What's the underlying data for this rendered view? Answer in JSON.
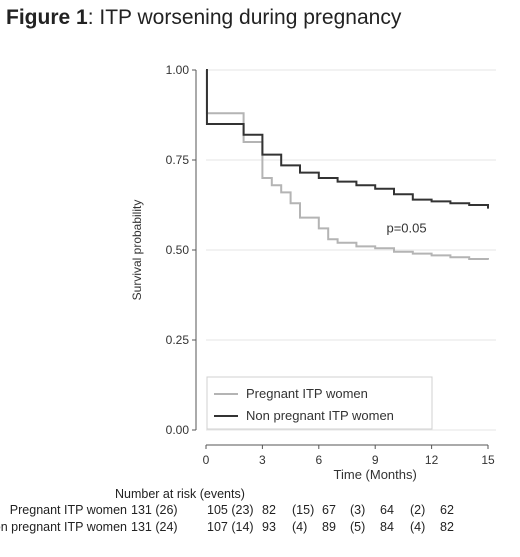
{
  "figure_label": "Figure 1",
  "figure_title": ": ITP worsening during pregnancy",
  "chart_data": {
    "type": "line",
    "subtype": "kaplan-meier-step",
    "xlabel": "Time (Months)",
    "ylabel": "Survival probability",
    "xlim": [
      0,
      15
    ],
    "ylim": [
      0,
      1
    ],
    "xticks": [
      "0",
      "3",
      "6",
      "9",
      "12",
      "15"
    ],
    "xtick_values": [
      0,
      3,
      6,
      9,
      12,
      15
    ],
    "yticks": [
      "0.00",
      "0.25",
      "0.50",
      "0.75",
      "1.00"
    ],
    "ytick_values": [
      0,
      0.25,
      0.5,
      0.75,
      1.0
    ],
    "grid": true,
    "legend_position": "bottom-left",
    "annotation": "p=0.05",
    "annotation_pos": [
      9.6,
      0.56
    ],
    "series": [
      {
        "name": "Pregnant ITP women",
        "color": "#b4b4b4",
        "x": [
          0,
          0.05,
          2,
          3,
          3.5,
          4,
          4.5,
          5,
          6,
          6.5,
          7,
          8,
          9,
          10,
          11,
          12,
          13,
          14,
          15
        ],
        "y": [
          1.0,
          0.88,
          0.8,
          0.7,
          0.68,
          0.66,
          0.63,
          0.59,
          0.56,
          0.53,
          0.52,
          0.51,
          0.505,
          0.495,
          0.49,
          0.485,
          0.48,
          0.475,
          0.473
        ]
      },
      {
        "name": "Non pregnant ITP women",
        "color": "#333333",
        "x": [
          0,
          0.05,
          2,
          3,
          4,
          5,
          6,
          7,
          8,
          9,
          10,
          11,
          12,
          13,
          14,
          15
        ],
        "y": [
          1.0,
          0.85,
          0.82,
          0.765,
          0.735,
          0.715,
          0.7,
          0.69,
          0.68,
          0.67,
          0.655,
          0.64,
          0.635,
          0.63,
          0.625,
          0.615
        ]
      }
    ]
  },
  "risk_table": {
    "header": "Number at risk (events)",
    "rows": [
      {
        "label": "Pregnant ITP women",
        "cells": [
          "131 (26)",
          "105 (23)",
          "82",
          "(15)",
          "67",
          "(3)",
          "64",
          "(2)",
          "62"
        ]
      },
      {
        "label": "Non pregnant ITP women",
        "cells": [
          "131 (24)",
          "107 (14)",
          "93",
          "(4)",
          "89",
          "(5)",
          "84",
          "(4)",
          "82"
        ]
      }
    ]
  }
}
